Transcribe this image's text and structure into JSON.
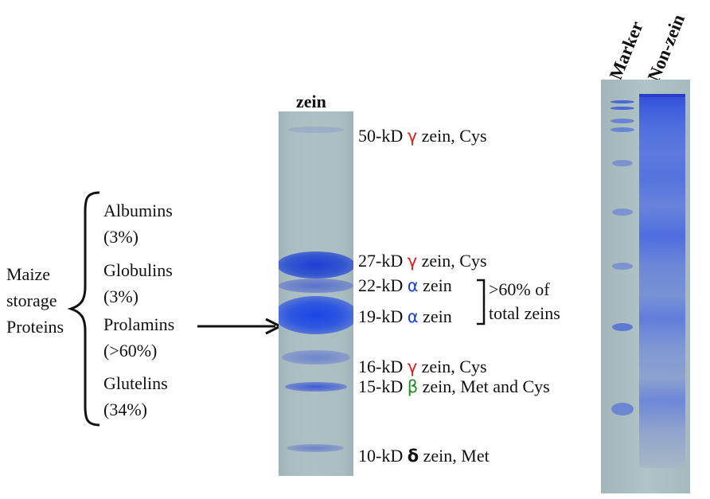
{
  "classification": {
    "title_lines": [
      "Maize",
      "storage",
      "Proteins"
    ],
    "groups": [
      {
        "name": "Albumins",
        "percent": "(3%)"
      },
      {
        "name": "Globulins",
        "percent": "(3%)"
      },
      {
        "name": "Prolamins",
        "percent": "(>60%)"
      },
      {
        "name": "Glutelins",
        "percent": "(34%)"
      }
    ]
  },
  "zein_gel": {
    "lane_label": "zein",
    "bands": [
      {
        "size": "50-kD",
        "greek": "γ",
        "greek_color": "#e31b1b",
        "rest": " zein,  Cys"
      },
      {
        "size": "27-kD",
        "greek": "γ",
        "greek_color": "#e31b1b",
        "rest": " zein,  Cys"
      },
      {
        "size": "22-kD",
        "greek": "α",
        "greek_color": "#1a3fd9",
        "rest": " zein"
      },
      {
        "size": "19-kD",
        "greek": "α",
        "greek_color": "#1a3fd9",
        "rest": " zein"
      },
      {
        "size": "16-kD",
        "greek": "γ",
        "greek_color": "#e31b1b",
        "rest": " zein, Cys"
      },
      {
        "size": "15-kD",
        "greek": "β",
        "greek_color": "#1f8a23",
        "rest": " zein, Met and Cys"
      },
      {
        "size": "10-kD",
        "greek": "δ",
        "greek_color": "#111111",
        "rest": " zein, Met"
      }
    ],
    "alpha_bracket_lines": [
      ">60% of",
      "total zeins"
    ]
  },
  "right_gel": {
    "lane_labels": [
      "Marker",
      "Non-zein"
    ]
  }
}
